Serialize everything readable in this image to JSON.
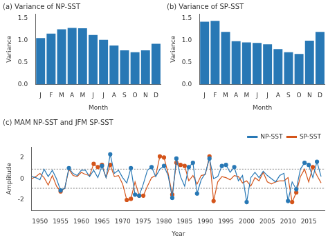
{
  "chart_data": [
    {
      "type": "bar",
      "title": "(a) Variance of NP-SST",
      "xlabel": "Month",
      "ylabel": "Variance",
      "categories": [
        "J",
        "F",
        "M",
        "A",
        "M",
        "J",
        "J",
        "A",
        "S",
        "O",
        "N",
        "D"
      ],
      "values": [
        1.05,
        1.15,
        1.25,
        1.28,
        1.27,
        1.12,
        1.01,
        0.88,
        0.77,
        0.73,
        0.77,
        0.92
      ],
      "color": "#2878b5",
      "ylim": [
        0,
        1.6
      ],
      "yticks": [
        {
          "value": 0,
          "label": "0.0"
        },
        0.5,
        {
          "value": 1.0,
          "label": "1.0"
        },
        1.5
      ],
      "grid": false
    },
    {
      "type": "bar",
      "title": "(b) Variance of SP-SST",
      "xlabel": "Month",
      "ylabel": "Variance",
      "categories": [
        "J",
        "F",
        "M",
        "A",
        "M",
        "J",
        "J",
        "A",
        "S",
        "O",
        "N",
        "D"
      ],
      "values": [
        1.42,
        1.44,
        1.19,
        0.98,
        0.95,
        0.94,
        0.91,
        0.8,
        0.73,
        0.69,
        0.99,
        1.19
      ],
      "color": "#2878b5",
      "ylim": [
        0,
        1.6
      ],
      "yticks": [
        {
          "value": 0,
          "label": "0.0"
        },
        0.5,
        {
          "value": 1.0,
          "label": "1.0"
        },
        1.5
      ],
      "grid": false
    },
    {
      "type": "line",
      "title": "(c) MAM NP-SST and JFM SP-SST",
      "xlabel": "Year",
      "ylabel": "Amplitude",
      "x": [
        1948,
        1949,
        1950,
        1951,
        1952,
        1953,
        1954,
        1955,
        1956,
        1957,
        1958,
        1959,
        1960,
        1961,
        1962,
        1963,
        1964,
        1965,
        1966,
        1967,
        1968,
        1969,
        1970,
        1971,
        1972,
        1973,
        1974,
        1975,
        1976,
        1977,
        1978,
        1979,
        1980,
        1981,
        1982,
        1983,
        1984,
        1985,
        1986,
        1987,
        1988,
        1989,
        1990,
        1991,
        1992,
        1993,
        1994,
        1995,
        1996,
        1997,
        1998,
        1999,
        2000,
        2001,
        2002,
        2003,
        2004,
        2005,
        2006,
        2007,
        2008,
        2009,
        2010,
        2011,
        2012,
        2013,
        2014,
        2015,
        2016,
        2017,
        2018
      ],
      "series": [
        {
          "name": "NP-SST",
          "color": "#2878b5",
          "values": [
            0.2,
            0.1,
            -0.1,
            0.9,
            0.2,
            0.8,
            0.0,
            -1.1,
            -0.9,
            1.0,
            0.5,
            0.3,
            0.8,
            0.8,
            0.2,
            0.8,
            0.1,
            1.2,
            0.1,
            2.3,
            0.5,
            0.8,
            0.1,
            -0.4,
            1.0,
            -1.5,
            -1.6,
            -0.5,
            0.8,
            1.1,
            0.2,
            0.9,
            1.2,
            0.3,
            -1.8,
            1.9,
            0.2,
            -0.7,
            1.1,
            1.5,
            -1.4,
            -0.1,
            0.5,
            1.9,
            0.0,
            0.2,
            1.2,
            1.3,
            0.6,
            1.1,
            -0.2,
            0.3,
            -2.2,
            0.1,
            0.6,
            0.1,
            0.7,
            0.3,
            0.0,
            -0.3,
            0.3,
            0.5,
            -2.1,
            -0.3,
            -1.0,
            0.9,
            1.5,
            1.3,
            0.1,
            1.6,
            0.2
          ]
        },
        {
          "name": "SP-SST",
          "color": "#d4541a",
          "values": [
            0.0,
            0.2,
            0.5,
            0.1,
            -0.6,
            0.3,
            -0.7,
            -1.2,
            -0.9,
            0.9,
            0.3,
            0.2,
            0.6,
            0.4,
            0.3,
            1.4,
            1.1,
            1.3,
            0.1,
            1.3,
            0.2,
            0.3,
            -0.5,
            -2.0,
            -1.9,
            -0.3,
            -1.6,
            -1.6,
            -0.7,
            0.1,
            0.3,
            2.1,
            2.0,
            0.5,
            -1.5,
            1.5,
            1.3,
            1.2,
            -0.2,
            0.3,
            -0.5,
            0.3,
            0.4,
            2.1,
            -2.1,
            -0.3,
            0.2,
            0.1,
            -0.1,
            0.3,
            0.2,
            -0.4,
            -0.2,
            -0.7,
            0.1,
            -0.2,
            0.6,
            -0.3,
            -0.5,
            -0.3,
            -0.2,
            -0.2,
            0.1,
            -2.2,
            -1.3,
            0.2,
            0.9,
            -0.3,
            1.1,
            0.3,
            -0.4
          ]
        }
      ],
      "xlim": [
        1948,
        2019
      ],
      "xticks": [
        1950,
        1955,
        1960,
        1965,
        1970,
        1975,
        1980,
        1985,
        1990,
        1995,
        2000,
        2005,
        2010,
        2015
      ],
      "ylim": [
        -3.0,
        3.0
      ],
      "yticks": [
        -2,
        0,
        2
      ],
      "grid": false,
      "legend": "upper right",
      "marker": "circle",
      "threshold": 0.9,
      "reference_lines": [
        0.9,
        -0.9
      ]
    }
  ]
}
